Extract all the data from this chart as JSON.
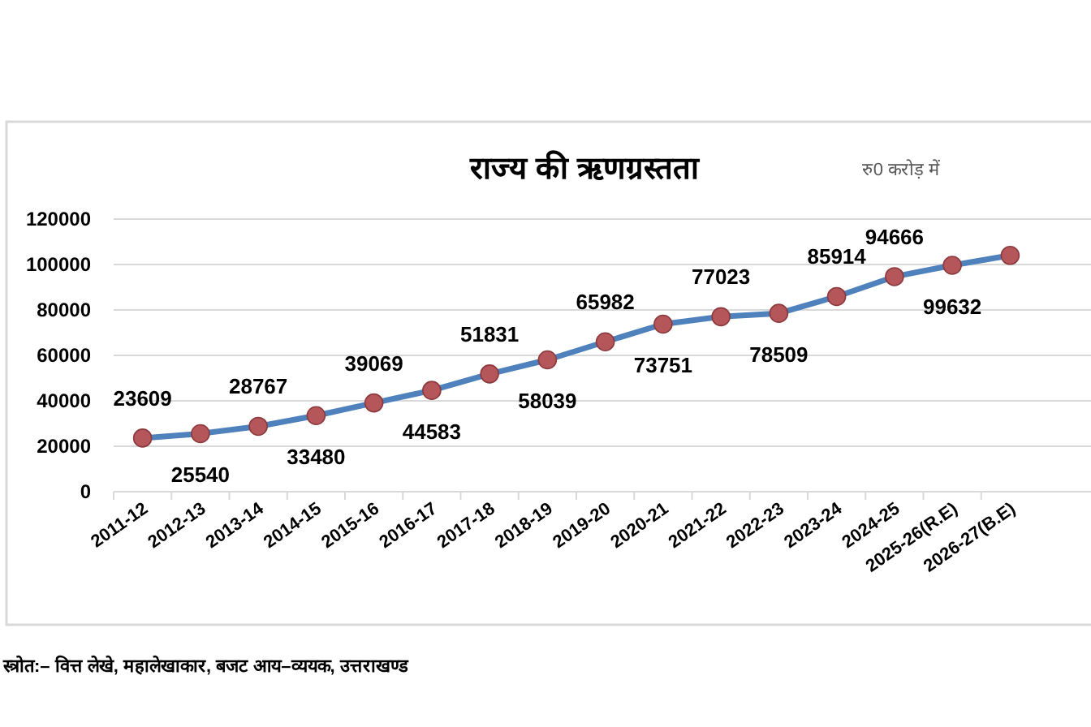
{
  "chart_data": {
    "type": "line",
    "title": "राज्य की ऋणग्रस्तता",
    "subtitle": "रु0 करोड़ में",
    "categories": [
      "2011-12",
      "2012-13",
      "2013-14",
      "2014-15",
      "2015-16",
      "2016-17",
      "2017-18",
      "2018-19",
      "2019-20",
      "2020-21",
      "2021-22",
      "2022-23",
      "2023-24",
      "2024-25",
      "2025-26(R.E)",
      "2026-27(B.E)"
    ],
    "series": [
      {
        "color": "#4f81bd",
        "values": [
          23609,
          25540,
          28767,
          33480,
          39069,
          44583,
          51831,
          58039,
          65982,
          73751,
          77023,
          78509,
          85914,
          94666,
          99632,
          104000
        ],
        "value_labels": [
          "23609",
          "25540",
          "28767",
          "33480",
          "39069",
          "44583",
          "51831",
          "58039",
          "65982",
          "73751",
          "77023",
          "78509",
          "85914",
          "94666",
          "99632",
          null
        ]
      }
    ],
    "marker": "circle",
    "ylim": [
      0,
      120000
    ],
    "yticks": [
      0,
      20000,
      40000,
      60000,
      80000,
      100000,
      120000
    ],
    "grid": "y",
    "annotations": [
      "स्त्रोत:– वित्त लेखे, महालेखाकार, बजट आय–व्ययक, उत्तराखण्ड"
    ]
  }
}
